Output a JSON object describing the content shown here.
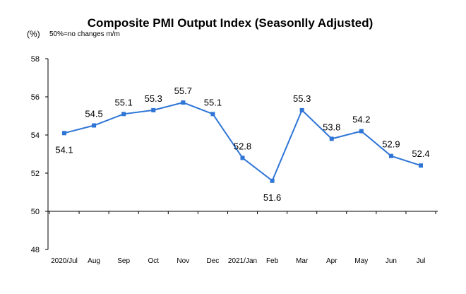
{
  "chart_data": {
    "type": "line",
    "title": "Composite PMI Output Index (Seasonlly Adjusted)",
    "unit_label": "(%)",
    "note": "50%=no changes  m/m",
    "xlabel": "",
    "ylabel": "",
    "ylim": [
      48,
      58
    ],
    "yticks": [
      48,
      50,
      52,
      54,
      56,
      58
    ],
    "grid": false,
    "categories": [
      "2020/Jul",
      "Aug",
      "Sep",
      "Oct",
      "Nov",
      "Dec",
      "2021/Jan",
      "Feb",
      "Mar",
      "Apr",
      "May",
      "Jun",
      "Jul"
    ],
    "values": [
      54.1,
      54.5,
      55.1,
      55.3,
      55.7,
      55.1,
      52.8,
      51.6,
      55.3,
      53.8,
      54.2,
      52.9,
      52.4
    ],
    "reference_line": 50,
    "colors": {
      "series": "#2E75D6",
      "axis": "#000000"
    }
  }
}
